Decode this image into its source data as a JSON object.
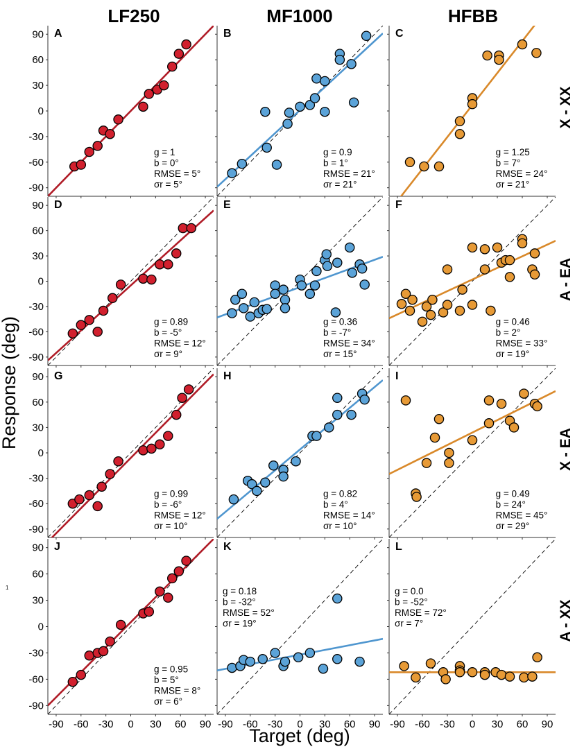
{
  "figure": {
    "column_titles": [
      "LF250",
      "MF1000",
      "HFBB"
    ],
    "row_titles": [
      "X - XX",
      "A - EA",
      "X - EA",
      "A - XX"
    ],
    "xlabel": "Target (deg)",
    "ylabel": "Response (deg)",
    "x_ticks": [
      "-90",
      "-60",
      "-30",
      "0",
      "30",
      "60",
      "90"
    ],
    "y_ticks": [
      "90",
      "60",
      "30",
      "0",
      "-30",
      "-60",
      "-90"
    ],
    "stray_mark": "1"
  },
  "colors": {
    "LF250": "#d1202e",
    "MF1000": "#5ba3d8",
    "HFBB": "#e79a36",
    "LF250_line": "#b01c27",
    "MF1000_line": "#4f96cf",
    "HFBB_line": "#d9892a"
  },
  "chart_data": [
    {
      "type": "scatter",
      "panel": "A",
      "column": "LF250",
      "row": "X - XX",
      "xlim": [
        -100,
        100
      ],
      "ylim": [
        -100,
        100
      ],
      "identity_line": true,
      "fit": {
        "g": 1,
        "b": 0
      },
      "stats": [
        "g = 1",
        "b = 0°",
        "RMSE = 5°",
        "σr = 5°"
      ],
      "stats_pos": "bottom-right",
      "points": [
        [
          -68,
          -65
        ],
        [
          -60,
          -63
        ],
        [
          -50,
          -48
        ],
        [
          -40,
          -41
        ],
        [
          -33,
          -23
        ],
        [
          -25,
          -27
        ],
        [
          -15,
          -10
        ],
        [
          15,
          5
        ],
        [
          22,
          20
        ],
        [
          32,
          25
        ],
        [
          40,
          30
        ],
        [
          50,
          52
        ],
        [
          58,
          67
        ],
        [
          67,
          78
        ]
      ]
    },
    {
      "type": "scatter",
      "panel": "B",
      "column": "MF1000",
      "row": "X - XX",
      "xlim": [
        -100,
        100
      ],
      "ylim": [
        -100,
        100
      ],
      "identity_line": true,
      "fit": {
        "g": 0.9,
        "b": 1
      },
      "stats": [
        "g = 0.9",
        "b = 1°",
        "RMSE = 21°",
        "σr = 21°"
      ],
      "stats_pos": "bottom-right",
      "points": [
        [
          -82,
          -73
        ],
        [
          -70,
          -62
        ],
        [
          -42,
          -1
        ],
        [
          -40,
          -43
        ],
        [
          -28,
          -63
        ],
        [
          -15,
          -15
        ],
        [
          -13,
          -2
        ],
        [
          0,
          5
        ],
        [
          12,
          7
        ],
        [
          20,
          38
        ],
        [
          18,
          15
        ],
        [
          30,
          35
        ],
        [
          30,
          -1
        ],
        [
          48,
          67
        ],
        [
          48,
          60
        ],
        [
          62,
          55
        ],
        [
          65,
          10
        ],
        [
          80,
          88
        ]
      ]
    },
    {
      "type": "scatter",
      "panel": "C",
      "column": "HFBB",
      "row": "X - XX",
      "xlim": [
        -100,
        100
      ],
      "ylim": [
        -100,
        100
      ],
      "identity_line": false,
      "fit": {
        "g": 1.25,
        "b": 7
      },
      "stats": [
        "g = 1.25",
        "b = 7°",
        "RMSE = 24°",
        "σr = 21°"
      ],
      "stats_pos": "bottom-right",
      "points": [
        [
          -75,
          -60
        ],
        [
          -58,
          -65
        ],
        [
          -40,
          -65
        ],
        [
          -15,
          -12
        ],
        [
          -15,
          -27
        ],
        [
          0,
          15
        ],
        [
          0,
          8
        ],
        [
          18,
          65
        ],
        [
          32,
          65
        ],
        [
          32,
          60
        ],
        [
          60,
          78
        ],
        [
          77,
          68
        ]
      ]
    },
    {
      "type": "scatter",
      "panel": "D",
      "column": "LF250",
      "row": "A - EA",
      "xlim": [
        -100,
        100
      ],
      "ylim": [
        -100,
        100
      ],
      "identity_line": true,
      "fit": {
        "g": 0.89,
        "b": -5
      },
      "stats": [
        "g = 0.89",
        "b = -5°",
        "RMSE = 12°",
        "σr = 9°"
      ],
      "stats_pos": "bottom-right",
      "points": [
        [
          -70,
          -62
        ],
        [
          -60,
          -52
        ],
        [
          -50,
          -46
        ],
        [
          -40,
          -60
        ],
        [
          -33,
          -35
        ],
        [
          -22,
          -20
        ],
        [
          -12,
          -4
        ],
        [
          15,
          3
        ],
        [
          25,
          2
        ],
        [
          35,
          20
        ],
        [
          45,
          20
        ],
        [
          55,
          33
        ],
        [
          63,
          63
        ],
        [
          73,
          63
        ]
      ]
    },
    {
      "type": "scatter",
      "panel": "E",
      "column": "MF1000",
      "row": "A - EA",
      "xlim": [
        -100,
        100
      ],
      "ylim": [
        -100,
        100
      ],
      "identity_line": true,
      "fit": {
        "g": 0.36,
        "b": -7
      },
      "stats": [
        "g = 0.36",
        "b = -7°",
        "RMSE = 34°",
        "σr = 15°"
      ],
      "stats_pos": "bottom-right",
      "points": [
        [
          -82,
          -38
        ],
        [
          -78,
          -22
        ],
        [
          -70,
          -15
        ],
        [
          -68,
          -32
        ],
        [
          -60,
          -42
        ],
        [
          -55,
          -25
        ],
        [
          -50,
          -38
        ],
        [
          -45,
          -34
        ],
        [
          -40,
          -33
        ],
        [
          -30,
          -5
        ],
        [
          -30,
          -15
        ],
        [
          -20,
          -10
        ],
        [
          -18,
          -22
        ],
        [
          -18,
          -32
        ],
        [
          0,
          2
        ],
        [
          2,
          -5
        ],
        [
          12,
          -15
        ],
        [
          18,
          -5
        ],
        [
          20,
          12
        ],
        [
          30,
          25
        ],
        [
          32,
          32
        ],
        [
          33,
          18
        ],
        [
          43,
          -37
        ],
        [
          45,
          22
        ],
        [
          60,
          40
        ],
        [
          63,
          10
        ],
        [
          72,
          20
        ],
        [
          75,
          15
        ],
        [
          78,
          -4
        ]
      ]
    },
    {
      "type": "scatter",
      "panel": "F",
      "column": "HFBB",
      "row": "A - EA",
      "xlim": [
        -100,
        100
      ],
      "ylim": [
        -100,
        100
      ],
      "identity_line": true,
      "fit": {
        "g": 0.46,
        "b": 2
      },
      "stats": [
        "g = 0.46",
        "b = 2°",
        "RMSE = 33°",
        "σr = 19°"
      ],
      "stats_pos": "bottom-right",
      "points": [
        [
          -85,
          -27
        ],
        [
          -80,
          -15
        ],
        [
          -75,
          -35
        ],
        [
          -72,
          -22
        ],
        [
          -60,
          -48
        ],
        [
          -55,
          -30
        ],
        [
          -50,
          -40
        ],
        [
          -48,
          -22
        ],
        [
          -35,
          -37
        ],
        [
          -30,
          -28
        ],
        [
          -30,
          14
        ],
        [
          -15,
          -35
        ],
        [
          -12,
          -10
        ],
        [
          0,
          40
        ],
        [
          0,
          -28
        ],
        [
          15,
          14
        ],
        [
          15,
          38
        ],
        [
          22,
          -35
        ],
        [
          30,
          40
        ],
        [
          35,
          22
        ],
        [
          40,
          25
        ],
        [
          45,
          5
        ],
        [
          45,
          25
        ],
        [
          60,
          50
        ],
        [
          60,
          45
        ],
        [
          72,
          14
        ],
        [
          75,
          33
        ],
        [
          75,
          8
        ]
      ]
    },
    {
      "type": "scatter",
      "panel": "G",
      "column": "LF250",
      "row": "X - EA",
      "xlim": [
        -100,
        100
      ],
      "ylim": [
        -100,
        100
      ],
      "identity_line": true,
      "fit": {
        "g": 0.99,
        "b": -6
      },
      "stats": [
        "g = 0.99",
        "b = -6°",
        "RMSE = 12°",
        "σr = 10°"
      ],
      "stats_pos": "bottom-right",
      "points": [
        [
          -70,
          -60
        ],
        [
          -62,
          -55
        ],
        [
          -50,
          -50
        ],
        [
          -40,
          -63
        ],
        [
          -35,
          -40
        ],
        [
          -25,
          -25
        ],
        [
          -15,
          -10
        ],
        [
          15,
          3
        ],
        [
          25,
          5
        ],
        [
          35,
          10
        ],
        [
          45,
          20
        ],
        [
          55,
          45
        ],
        [
          62,
          65
        ],
        [
          70,
          75
        ]
      ]
    },
    {
      "type": "scatter",
      "panel": "H",
      "column": "MF1000",
      "row": "X - EA",
      "xlim": [
        -100,
        100
      ],
      "ylim": [
        -100,
        100
      ],
      "identity_line": true,
      "fit": {
        "g": 0.82,
        "b": 4
      },
      "stats": [
        "g = 0.82",
        "b = 4°",
        "RMSE = 14°",
        "σr = 10°"
      ],
      "stats_pos": "bottom-right",
      "points": [
        [
          -80,
          -55
        ],
        [
          -63,
          -33
        ],
        [
          -58,
          -37
        ],
        [
          -52,
          -45
        ],
        [
          -42,
          -35
        ],
        [
          -32,
          -15
        ],
        [
          -20,
          -20
        ],
        [
          -20,
          -28
        ],
        [
          -5,
          -10
        ],
        [
          15,
          20
        ],
        [
          20,
          20
        ],
        [
          35,
          30
        ],
        [
          45,
          65
        ],
        [
          45,
          45
        ],
        [
          62,
          45
        ],
        [
          75,
          70
        ],
        [
          78,
          63
        ]
      ]
    },
    {
      "type": "scatter",
      "panel": "I",
      "column": "HFBB",
      "row": "X - EA",
      "xlim": [
        -100,
        100
      ],
      "ylim": [
        -100,
        100
      ],
      "identity_line": true,
      "fit": {
        "g": 0.49,
        "b": 24
      },
      "stats": [
        "g = 0.49",
        "b = 24°",
        "RMSE = 45°",
        "σr = 29°"
      ],
      "stats_pos": "bottom-right",
      "points": [
        [
          -80,
          62
        ],
        [
          -68,
          -48
        ],
        [
          -67,
          -52
        ],
        [
          -55,
          -12
        ],
        [
          -45,
          18
        ],
        [
          -40,
          40
        ],
        [
          -28,
          -12
        ],
        [
          -28,
          0
        ],
        [
          0,
          15
        ],
        [
          20,
          35
        ],
        [
          20,
          62
        ],
        [
          35,
          58
        ],
        [
          45,
          38
        ],
        [
          50,
          30
        ],
        [
          62,
          70
        ],
        [
          75,
          58
        ],
        [
          78,
          55
        ]
      ]
    },
    {
      "type": "scatter",
      "panel": "J",
      "column": "LF250",
      "row": "A - XX",
      "xlim": [
        -100,
        100
      ],
      "ylim": [
        -100,
        100
      ],
      "identity_line": true,
      "fit": {
        "g": 0.95,
        "b": 5
      },
      "stats": [
        "g = 0.95",
        "b = 5°",
        "RMSE = 8°",
        "σr = 6°"
      ],
      "stats_pos": "bottom-right",
      "points": [
        [
          -70,
          -63
        ],
        [
          -60,
          -55
        ],
        [
          -50,
          -33
        ],
        [
          -40,
          -30
        ],
        [
          -33,
          -28
        ],
        [
          -25,
          -17
        ],
        [
          -12,
          2
        ],
        [
          15,
          15
        ],
        [
          22,
          17
        ],
        [
          35,
          40
        ],
        [
          45,
          33
        ],
        [
          50,
          55
        ],
        [
          58,
          63
        ],
        [
          67,
          75
        ]
      ]
    },
    {
      "type": "scatter",
      "panel": "K",
      "column": "MF1000",
      "row": "A - XX",
      "xlim": [
        -100,
        100
      ],
      "ylim": [
        -100,
        100
      ],
      "identity_line": true,
      "fit": {
        "g": 0.18,
        "b": -32
      },
      "stats": [
        "g = 0.18",
        "b = -32°",
        "RMSE = 52°",
        "σr = 19°"
      ],
      "stats_pos": "top-left",
      "points": [
        [
          -82,
          -47
        ],
        [
          -72,
          -45
        ],
        [
          -68,
          -38
        ],
        [
          -60,
          -40
        ],
        [
          -45,
          -37
        ],
        [
          -30,
          -30
        ],
        [
          -20,
          -45
        ],
        [
          -18,
          -40
        ],
        [
          -2,
          -35
        ],
        [
          12,
          -30
        ],
        [
          28,
          -48
        ],
        [
          45,
          32
        ],
        [
          45,
          -37
        ],
        [
          72,
          -40
        ]
      ]
    },
    {
      "type": "scatter",
      "panel": "L",
      "column": "HFBB",
      "row": "A - XX",
      "xlim": [
        -100,
        100
      ],
      "ylim": [
        -100,
        100
      ],
      "identity_line": true,
      "fit": {
        "g": 0.0,
        "b": -52
      },
      "stats": [
        "g = 0.0",
        "b = -52°",
        "RMSE = 72°",
        "σr = 7°"
      ],
      "stats_pos": "top-left",
      "points": [
        [
          -82,
          -45
        ],
        [
          -68,
          -58
        ],
        [
          -50,
          -42
        ],
        [
          -35,
          -52
        ],
        [
          -32,
          -60
        ],
        [
          -15,
          -45
        ],
        [
          -15,
          -50
        ],
        [
          -15,
          -52
        ],
        [
          0,
          -52
        ],
        [
          15,
          -52
        ],
        [
          15,
          -55
        ],
        [
          28,
          -52
        ],
        [
          35,
          -55
        ],
        [
          45,
          -57
        ],
        [
          62,
          -58
        ],
        [
          72,
          -57
        ],
        [
          78,
          -35
        ]
      ]
    }
  ]
}
